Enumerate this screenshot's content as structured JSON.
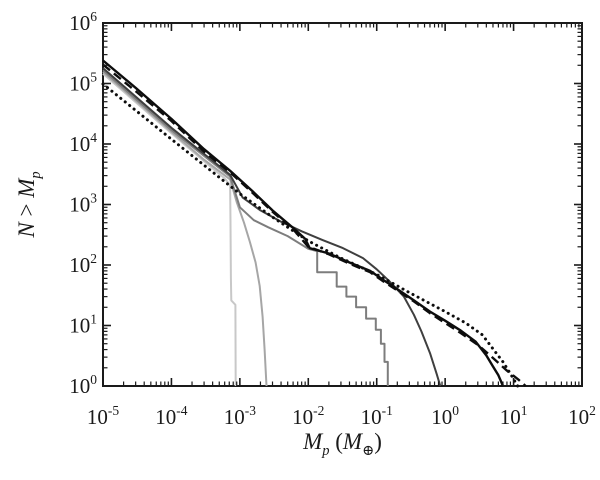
{
  "figure": {
    "background": "#ffffff",
    "axis_color": "#1a1a1a"
  },
  "chart_data": {
    "type": "line",
    "title": "",
    "x_scale": "log",
    "y_scale": "log",
    "grid": false,
    "legend": "none",
    "xlim": [
      1e-05,
      100.0
    ],
    "ylim": [
      1,
      1000000.0
    ],
    "xlabel": "M_p (M_earth)",
    "ylabel": "N > M_p",
    "xlabel_parts": [
      {
        "text": "M",
        "kind": "it"
      },
      {
        "text": "p",
        "kind": "sub"
      },
      {
        "text": " (",
        "kind": "norm"
      },
      {
        "text": "M",
        "kind": "it"
      },
      {
        "text": "⊕",
        "kind": "subsym"
      },
      {
        "text": ")",
        "kind": "norm"
      }
    ],
    "ylabel_parts": [
      {
        "text": "N",
        "kind": "it"
      },
      {
        "text": " > ",
        "kind": "norm"
      },
      {
        "text": "M",
        "kind": "it"
      },
      {
        "text": "p",
        "kind": "sub"
      }
    ],
    "tick_base": "10",
    "x_tick_exponents": [
      -5,
      -4,
      -3,
      -2,
      -1,
      0,
      1,
      2
    ],
    "y_tick_exponents": [
      0,
      1,
      2,
      3,
      4,
      5,
      6
    ],
    "series": [
      {
        "name": "series-1-lightest-gray",
        "color": "#c8c8c8",
        "line_style": "solid",
        "width": 2.0,
        "points": [
          [
            1e-05,
            145000.0
          ],
          [
            0.0001,
            15000.0
          ],
          [
            0.0003,
            5200.0
          ],
          [
            0.0006,
            2700.0
          ],
          [
            0.00072,
            2100.0
          ],
          [
            0.00073,
            500.0
          ],
          [
            0.00074,
            60
          ],
          [
            0.00075,
            26
          ],
          [
            0.00086,
            22
          ],
          [
            0.00087,
            1
          ]
        ]
      },
      {
        "name": "series-2-light-gray",
        "color": "#a6a6a6",
        "line_style": "solid",
        "width": 2.0,
        "points": [
          [
            1e-05,
            155000.0
          ],
          [
            0.0001,
            16000.0
          ],
          [
            0.0003,
            5500.0
          ],
          [
            0.00072,
            2600.0
          ],
          [
            0.0009,
            1100.0
          ],
          [
            0.00115,
            500.0
          ],
          [
            0.0014,
            240.0
          ],
          [
            0.0017,
            110.0
          ],
          [
            0.00195,
            45
          ],
          [
            0.00215,
            14
          ],
          [
            0.0023,
            4
          ],
          [
            0.00245,
            1
          ]
        ]
      },
      {
        "name": "series-3-medium-gray",
        "color": "#7d7d7d",
        "line_style": "solid",
        "width": 2.0,
        "points": [
          [
            1e-05,
            165000.0
          ],
          [
            0.0001,
            17000.0
          ],
          [
            0.00072,
            2900.0
          ],
          [
            0.001,
            900.0
          ],
          [
            0.0016,
            550.0
          ],
          [
            0.0026,
            420.0
          ],
          [
            0.005,
            300.0
          ],
          [
            0.01,
            185.0
          ],
          [
            0.0135,
            170.0
          ],
          [
            0.0135,
            76
          ],
          [
            0.026,
            76
          ],
          [
            0.026,
            44
          ],
          [
            0.036,
            44
          ],
          [
            0.036,
            30
          ],
          [
            0.05,
            30
          ],
          [
            0.05,
            20
          ],
          [
            0.07,
            20
          ],
          [
            0.07,
            13
          ],
          [
            0.097,
            13
          ],
          [
            0.097,
            8.5
          ],
          [
            0.115,
            8.5
          ],
          [
            0.115,
            5
          ],
          [
            0.13,
            5
          ],
          [
            0.13,
            2.5
          ],
          [
            0.145,
            2.5
          ],
          [
            0.145,
            1
          ]
        ]
      },
      {
        "name": "series-4-dark-gray",
        "color": "#3f3f3f",
        "line_style": "solid",
        "width": 2.0,
        "points": [
          [
            1e-05,
            180000.0
          ],
          [
            0.0001,
            18500.0
          ],
          [
            0.00072,
            3100.0
          ],
          [
            0.0011,
            1300.0
          ],
          [
            0.002,
            800.0
          ],
          [
            0.004,
            520.0
          ],
          [
            0.008,
            360.0
          ],
          [
            0.016,
            260.0
          ],
          [
            0.032,
            190.0
          ],
          [
            0.063,
            130.0
          ],
          [
            0.1,
            85
          ],
          [
            0.15,
            55
          ],
          [
            0.25,
            30
          ],
          [
            0.35,
            15
          ],
          [
            0.45,
            8
          ],
          [
            0.6,
            3.5
          ],
          [
            0.75,
            1.6
          ],
          [
            0.85,
            1
          ]
        ]
      },
      {
        "name": "series-5-black-dotted",
        "color": "#0d0d0d",
        "line_style": "dotted",
        "width": 3.0,
        "points": [
          [
            1e-05,
            98000.0
          ],
          [
            0.0001,
            12000.0
          ],
          [
            0.001,
            1500.0
          ],
          [
            0.003,
            620.0
          ],
          [
            0.01,
            250.0
          ],
          [
            0.03,
            130.0
          ],
          [
            0.1,
            70
          ],
          [
            0.3,
            35
          ],
          [
            1.0,
            17
          ],
          [
            2.0,
            11
          ],
          [
            3.5,
            7
          ],
          [
            5.0,
            4.1
          ],
          [
            7.0,
            2.5
          ],
          [
            9.0,
            1.6
          ],
          [
            11.5,
            1
          ]
        ]
      },
      {
        "name": "series-6-black-dashed",
        "color": "#0d0d0d",
        "line_style": "dashed",
        "width": 2.4,
        "points": [
          [
            1e-05,
            205000.0
          ],
          [
            3e-05,
            75000.0
          ],
          [
            0.0001,
            24000.0
          ],
          [
            0.0003,
            7500.0
          ],
          [
            0.00072,
            3400.0
          ],
          [
            0.0015,
            1600.0
          ],
          [
            0.003,
            760.0
          ],
          [
            0.006,
            390.0
          ],
          [
            0.01,
            200.0
          ],
          [
            0.02,
            150.0
          ],
          [
            0.04,
            105.0
          ],
          [
            0.08,
            76
          ],
          [
            0.13,
            52
          ],
          [
            0.2,
            38
          ],
          [
            0.35,
            25
          ],
          [
            0.6,
            16
          ],
          [
            1.0,
            11
          ],
          [
            1.7,
            7.5
          ],
          [
            3.0,
            4.8
          ],
          [
            5.0,
            2.9
          ],
          [
            8.0,
            1.8
          ],
          [
            12.0,
            1.25
          ],
          [
            15.0,
            1
          ]
        ]
      },
      {
        "name": "series-7-black-solid",
        "color": "#0d0d0d",
        "line_style": "solid",
        "width": 2.4,
        "points": [
          [
            1e-05,
            240000.0
          ],
          [
            3e-05,
            85000.0
          ],
          [
            0.0001,
            26000.0
          ],
          [
            0.0003,
            8200.0
          ],
          [
            0.00072,
            3600.0
          ],
          [
            0.0015,
            1700.0
          ],
          [
            0.003,
            800.0
          ],
          [
            0.006,
            410.0
          ],
          [
            0.009,
            270.0
          ],
          [
            0.0105,
            190.0
          ],
          [
            0.02,
            155.0
          ],
          [
            0.04,
            110.0
          ],
          [
            0.08,
            80
          ],
          [
            0.13,
            55
          ],
          [
            0.2,
            40
          ],
          [
            0.35,
            26
          ],
          [
            0.6,
            17
          ],
          [
            1.0,
            12
          ],
          [
            1.7,
            8.2
          ],
          [
            2.8,
            5.4
          ],
          [
            4.0,
            3.2
          ],
          [
            5.0,
            2.1
          ],
          [
            6.0,
            1.5
          ],
          [
            7.0,
            1
          ]
        ]
      }
    ]
  }
}
